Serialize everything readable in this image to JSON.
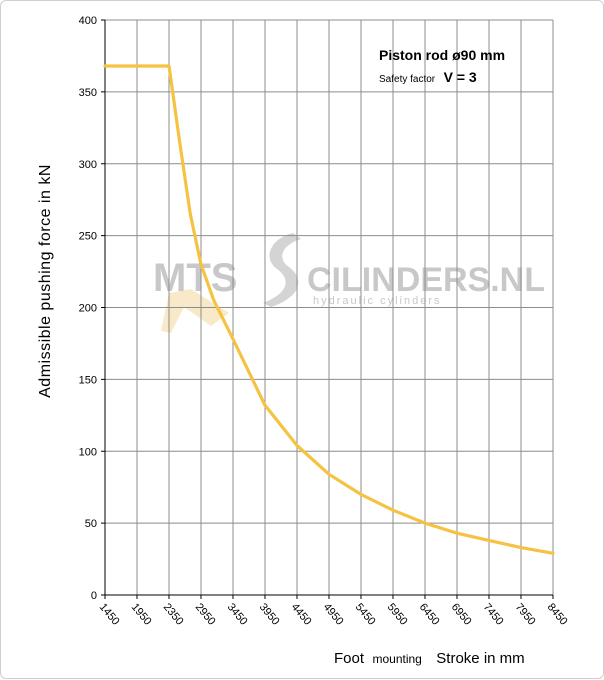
{
  "chart_data": {
    "type": "line",
    "title": "",
    "ylabel": "Admissible pushing force in kN",
    "xlabel": {
      "part1": "Foot",
      "part2": "mounting",
      "part3": "Stroke in mm"
    },
    "annotation": {
      "line1": "Piston rod ø90 mm",
      "line2_small": "Safety factor",
      "line2_main": "V = 3"
    },
    "ylim": [
      0,
      400
    ],
    "yticks": [
      0,
      50,
      100,
      150,
      200,
      250,
      300,
      350,
      400
    ],
    "xlim": [
      1450,
      8450
    ],
    "xticks": [
      "1450",
      "1950",
      "2350",
      "2950",
      "3450",
      "3950",
      "4450",
      "4950",
      "5450",
      "5950",
      "6450",
      "6950",
      "7450",
      "7950",
      "8450"
    ],
    "grid": true,
    "color": "#F5C242",
    "series": [
      {
        "x": [
          1450,
          1950,
          2350,
          2550,
          2750,
          2950,
          3150,
          3450,
          3950,
          4450,
          4950,
          5450,
          5950,
          6450,
          6950,
          7450,
          7950,
          8450
        ],
        "y": [
          368,
          368,
          368,
          315,
          265,
          230,
          205,
          178,
          132,
          104,
          84,
          70,
          59,
          50,
          43,
          38,
          33,
          29
        ]
      }
    ]
  },
  "watermark": {
    "left": "MTS",
    "right": "CILINDERS.NL",
    "sub": "hydraulic cylinders"
  }
}
